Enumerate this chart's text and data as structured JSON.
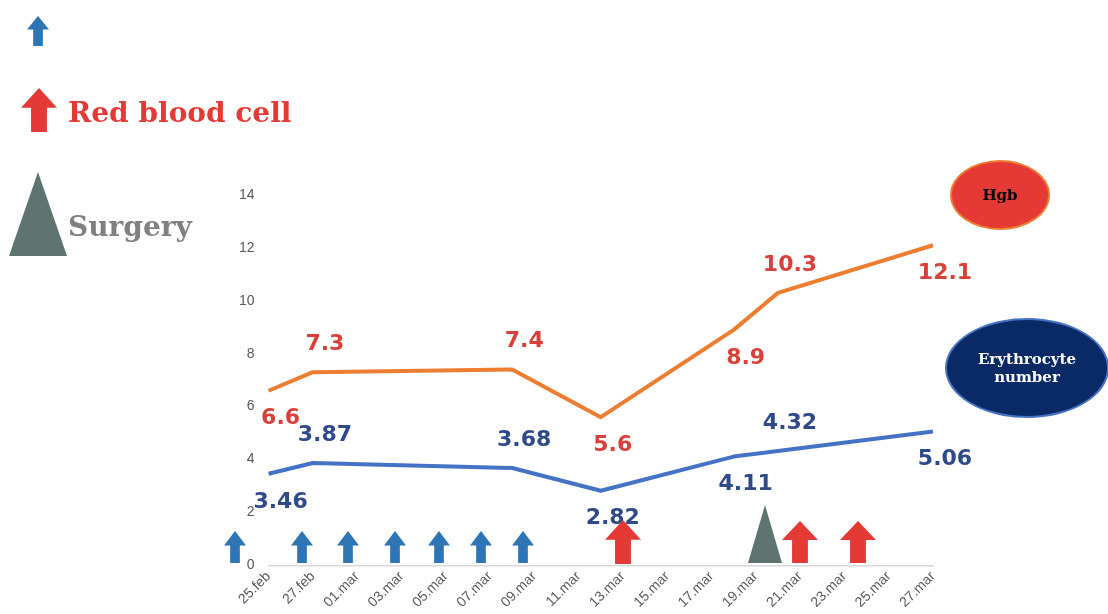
{
  "chart_data": {
    "type": "line",
    "categories": [
      "25.feb",
      null,
      "27.feb",
      null,
      "01.mar",
      null,
      "03.mar",
      null,
      "05.mar",
      null,
      "07.mar",
      null,
      "09.mar",
      null,
      "11.mar",
      null,
      "13.mar",
      null,
      "15.mar",
      null,
      "17.mar",
      null,
      "19.mar",
      null,
      "21.mar",
      null,
      "23.mar",
      null,
      "25.mar",
      null,
      "27.mar"
    ],
    "series": [
      {
        "name": "Hgb",
        "color": "#ed7d31",
        "values": [
          6.6,
          null,
          7.3,
          null,
          null,
          null,
          null,
          null,
          null,
          null,
          null,
          7.4,
          null,
          null,
          null,
          5.6,
          null,
          null,
          null,
          null,
          null,
          8.9,
          null,
          10.3,
          null,
          null,
          null,
          null,
          null,
          null,
          12.1
        ]
      },
      {
        "name": "Erythrocyte number",
        "color": "#4472c4",
        "values": [
          3.46,
          null,
          3.87,
          null,
          null,
          null,
          null,
          null,
          null,
          null,
          null,
          3.68,
          null,
          null,
          null,
          2.82,
          null,
          null,
          null,
          null,
          null,
          4.11,
          null,
          4.32,
          null,
          null,
          null,
          null,
          null,
          null,
          5.06
        ]
      }
    ],
    "ylim": [
      0,
      14
    ],
    "yticks": [
      0,
      2,
      4,
      6,
      8,
      10,
      12,
      14
    ],
    "grid": false,
    "legend": false,
    "marker": "none",
    "line_style": "solid",
    "data_labels": true,
    "annotations": [
      "Red blood cell",
      "Surgery"
    ]
  }
}
